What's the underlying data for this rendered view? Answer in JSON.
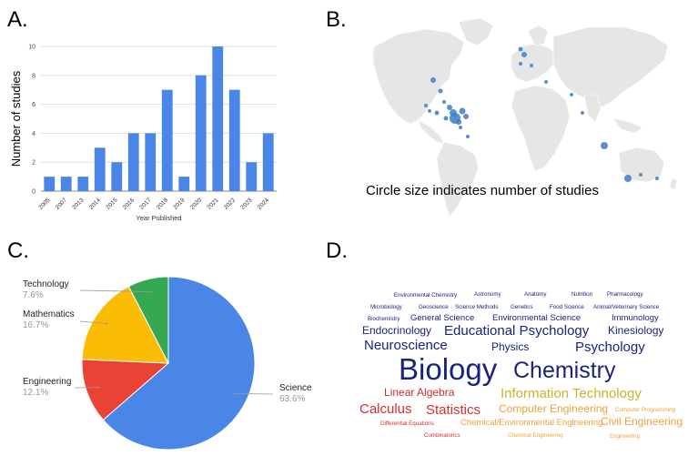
{
  "panels": {
    "a": {
      "letter": "A."
    },
    "b": {
      "letter": "B.",
      "caption": "Circle size indicates number of studies"
    },
    "c": {
      "letter": "C."
    },
    "d": {
      "letter": "D."
    }
  },
  "colors": {
    "bar": "#4a86e8",
    "map_land": "#e6e6e6",
    "map_point": "#3d7cc9",
    "science": "#4a86e8",
    "engineering": "#ea4335",
    "mathematics": "#fbbc04",
    "technology": "#34a853",
    "wc_navy": "#1a237e",
    "wc_olive": "#c9b42b",
    "wc_red": "#d32f2f",
    "wc_orange": "#f5a03a"
  },
  "chart_data": [
    {
      "type": "bar",
      "categories": [
        "2005",
        "2007",
        "2013",
        "2014",
        "2015",
        "2016",
        "2017",
        "2018",
        "2019",
        "2020",
        "2021",
        "2022",
        "2023",
        "2024"
      ],
      "values": [
        1,
        1,
        1,
        3,
        2,
        4,
        4,
        7,
        1,
        8,
        10,
        7,
        2,
        4
      ],
      "xlabel": "Year Published",
      "ylabel": "Number of studies",
      "ylim": [
        0,
        10
      ],
      "yticks": [
        "0",
        "2",
        "4",
        "6",
        "8",
        "10"
      ],
      "grid": "horizontal"
    },
    {
      "type": "pie",
      "slices": [
        {
          "label": "Science",
          "value": 63.6,
          "pct": "63.6%"
        },
        {
          "label": "Engineering",
          "value": 12.1,
          "pct": "12.1%"
        },
        {
          "label": "Mathematics",
          "value": 16.7,
          "pct": "16.7%"
        },
        {
          "label": "Technology",
          "value": 7.6,
          "pct": "7.6%"
        }
      ]
    }
  ],
  "word_cloud": [
    {
      "text": "Environmental Chemistry",
      "color": "navy",
      "size": "xs"
    },
    {
      "text": "Astronomy",
      "color": "navy",
      "size": "xs"
    },
    {
      "text": "Anatomy",
      "color": "navy",
      "size": "xs"
    },
    {
      "text": "Nutrition",
      "color": "navy",
      "size": "xs"
    },
    {
      "text": "Pharmacology",
      "color": "navy",
      "size": "xs"
    },
    {
      "text": "Microbiology",
      "color": "navy",
      "size": "xs"
    },
    {
      "text": "Geoscience",
      "color": "navy",
      "size": "xs"
    },
    {
      "text": "Science Methods",
      "color": "navy",
      "size": "xs"
    },
    {
      "text": "Genetics",
      "color": "navy",
      "size": "xs"
    },
    {
      "text": "Food Science",
      "color": "navy",
      "size": "xs"
    },
    {
      "text": "Animal/Veterinary Science",
      "color": "navy",
      "size": "xs"
    },
    {
      "text": "Biochemistry",
      "color": "navy",
      "size": "xs"
    },
    {
      "text": "General Science",
      "color": "navy",
      "size": "s"
    },
    {
      "text": "Environmental Science",
      "color": "navy",
      "size": "s"
    },
    {
      "text": "Immunology",
      "color": "navy",
      "size": "s"
    },
    {
      "text": "Endocrinology",
      "color": "navy",
      "size": "m"
    },
    {
      "text": "Educational Psychology",
      "color": "navy",
      "size": "l"
    },
    {
      "text": "Kinesiology",
      "color": "navy",
      "size": "m"
    },
    {
      "text": "Neuroscience",
      "color": "navy",
      "size": "l"
    },
    {
      "text": "Physics",
      "color": "navy",
      "size": "m"
    },
    {
      "text": "Psychology",
      "color": "navy",
      "size": "l"
    },
    {
      "text": "Biology",
      "color": "navy",
      "size": "xxl"
    },
    {
      "text": "Chemistry",
      "color": "navy",
      "size": "xl"
    },
    {
      "text": "Linear Algebra",
      "color": "red",
      "size": "m"
    },
    {
      "text": "Information Technology",
      "color": "olive",
      "size": "l"
    },
    {
      "text": "Calculus",
      "color": "red",
      "size": "l"
    },
    {
      "text": "Statistics",
      "color": "red",
      "size": "l"
    },
    {
      "text": "Computer Engineering",
      "color": "orange",
      "size": "m"
    },
    {
      "text": "Computer Programming",
      "color": "orange",
      "size": "xs"
    },
    {
      "text": "Differential Equations",
      "color": "red",
      "size": "xs"
    },
    {
      "text": "Chemical/Environmental Engineering",
      "color": "orange",
      "size": "s"
    },
    {
      "text": "Civil Engineering",
      "color": "orange",
      "size": "m"
    },
    {
      "text": "Combinatorics",
      "color": "red",
      "size": "xs"
    },
    {
      "text": "Chemical Engineering",
      "color": "orange",
      "size": "xs"
    },
    {
      "text": "Engineering",
      "color": "orange",
      "size": "xs"
    }
  ]
}
